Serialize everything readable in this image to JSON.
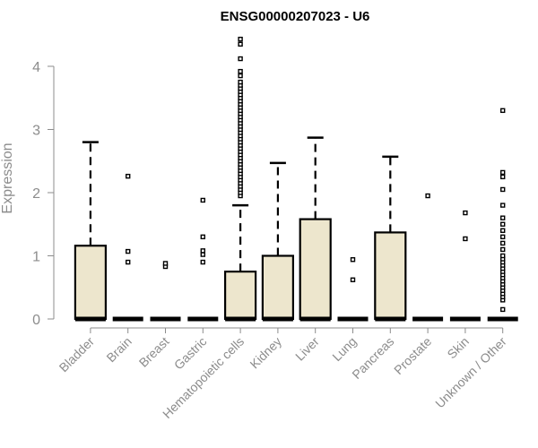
{
  "chart_data": {
    "type": "boxplot",
    "title": "ENSG00000207023 - U6",
    "ylabel": "Expression",
    "xlabel": "",
    "ylim": [
      0,
      4.5
    ],
    "yticks": [
      0,
      1,
      2,
      3,
      4
    ],
    "grid": false,
    "box_fill": "#ede6cd",
    "categories": [
      "Bladder",
      "Brain",
      "Breast",
      "Gastric",
      "Hematopoietic cells",
      "Kidney",
      "Liver",
      "Lung",
      "Pancreas",
      "Prostate",
      "Skin",
      "Unknown / Other"
    ],
    "boxes": [
      {
        "category": "Bladder",
        "q1": 0,
        "median": 0,
        "q3": 1.16,
        "whisker_low": 0,
        "whisker_high": 2.8,
        "outliers": []
      },
      {
        "category": "Brain",
        "q1": 0,
        "median": 0,
        "q3": 0,
        "whisker_low": 0,
        "whisker_high": 0,
        "outliers": [
          0.9,
          1.07,
          2.26
        ]
      },
      {
        "category": "Breast",
        "q1": 0,
        "median": 0,
        "q3": 0,
        "whisker_low": 0,
        "whisker_high": 0,
        "outliers": [
          0.83,
          0.88
        ]
      },
      {
        "category": "Gastric",
        "q1": 0,
        "median": 0,
        "q3": 0,
        "whisker_low": 0,
        "whisker_high": 0,
        "outliers": [
          0.9,
          1.02,
          1.08,
          1.3,
          1.88
        ]
      },
      {
        "category": "Hematopoietic cells",
        "q1": 0,
        "median": 0,
        "q3": 0.75,
        "whisker_low": 0,
        "whisker_high": 1.8,
        "outliers": [
          1.95,
          2.0,
          2.05,
          2.1,
          2.15,
          2.2,
          2.25,
          2.3,
          2.35,
          2.4,
          2.45,
          2.5,
          2.55,
          2.6,
          2.65,
          2.7,
          2.75,
          2.8,
          2.85,
          2.9,
          2.95,
          3.0,
          3.05,
          3.1,
          3.15,
          3.2,
          3.25,
          3.3,
          3.35,
          3.4,
          3.45,
          3.5,
          3.55,
          3.6,
          3.65,
          3.7,
          3.75,
          3.85,
          3.92,
          4.12,
          4.35,
          4.43
        ]
      },
      {
        "category": "Kidney",
        "q1": 0,
        "median": 0,
        "q3": 1.0,
        "whisker_low": 0,
        "whisker_high": 2.47,
        "outliers": []
      },
      {
        "category": "Liver",
        "q1": 0,
        "median": 0,
        "q3": 1.58,
        "whisker_low": 0,
        "whisker_high": 2.87,
        "outliers": []
      },
      {
        "category": "Lung",
        "q1": 0,
        "median": 0,
        "q3": 0,
        "whisker_low": 0,
        "whisker_high": 0,
        "outliers": [
          0.62,
          0.94
        ]
      },
      {
        "category": "Pancreas",
        "q1": 0,
        "median": 0,
        "q3": 1.37,
        "whisker_low": 0,
        "whisker_high": 2.57,
        "outliers": []
      },
      {
        "category": "Prostate",
        "q1": 0,
        "median": 0,
        "q3": 0,
        "whisker_low": 0,
        "whisker_high": 0,
        "outliers": [
          1.95
        ]
      },
      {
        "category": "Skin",
        "q1": 0,
        "median": 0,
        "q3": 0,
        "whisker_low": 0,
        "whisker_high": 0,
        "outliers": [
          1.27,
          1.68
        ]
      },
      {
        "category": "Unknown / Other",
        "q1": 0,
        "median": 0,
        "q3": 0,
        "whisker_low": 0,
        "whisker_high": 0,
        "outliers": [
          0.15,
          0.3,
          0.35,
          0.4,
          0.45,
          0.5,
          0.55,
          0.6,
          0.65,
          0.7,
          0.75,
          0.8,
          0.85,
          0.9,
          0.95,
          1.0,
          1.1,
          1.2,
          1.3,
          1.4,
          1.5,
          1.6,
          1.8,
          2.05,
          2.25,
          2.32,
          3.3
        ]
      }
    ]
  }
}
